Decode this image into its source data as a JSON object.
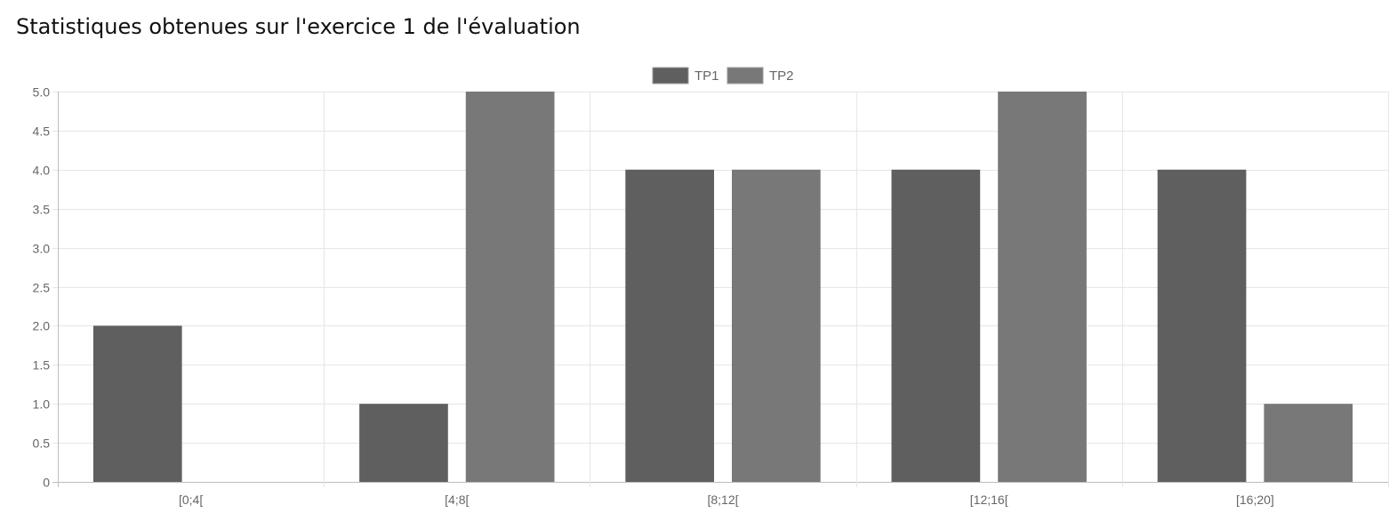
{
  "page": {
    "title": "Statistiques obtenues sur l'exercice 1 de l'évaluation"
  },
  "chart_data": {
    "type": "bar",
    "categories": [
      "[0;4[",
      "[4;8[",
      "[8;12[",
      "[12;16[",
      "[16;20]"
    ],
    "series": [
      {
        "name": "TP1",
        "values": [
          2,
          1,
          4,
          4,
          4
        ],
        "color": "#5f5f5f"
      },
      {
        "name": "TP2",
        "values": [
          0,
          5,
          4,
          5,
          1
        ],
        "color": "#787878"
      }
    ],
    "ylim": [
      0,
      5
    ],
    "yticks": [
      "0",
      "0.5",
      "1.0",
      "1.5",
      "2.0",
      "2.5",
      "3.0",
      "3.5",
      "4.0",
      "4.5",
      "5.0"
    ],
    "legend": "top-center",
    "grid": true,
    "colors": {
      "grid": "#e6e6e6",
      "axis": "#bdbdbd",
      "text": "#666666"
    }
  }
}
